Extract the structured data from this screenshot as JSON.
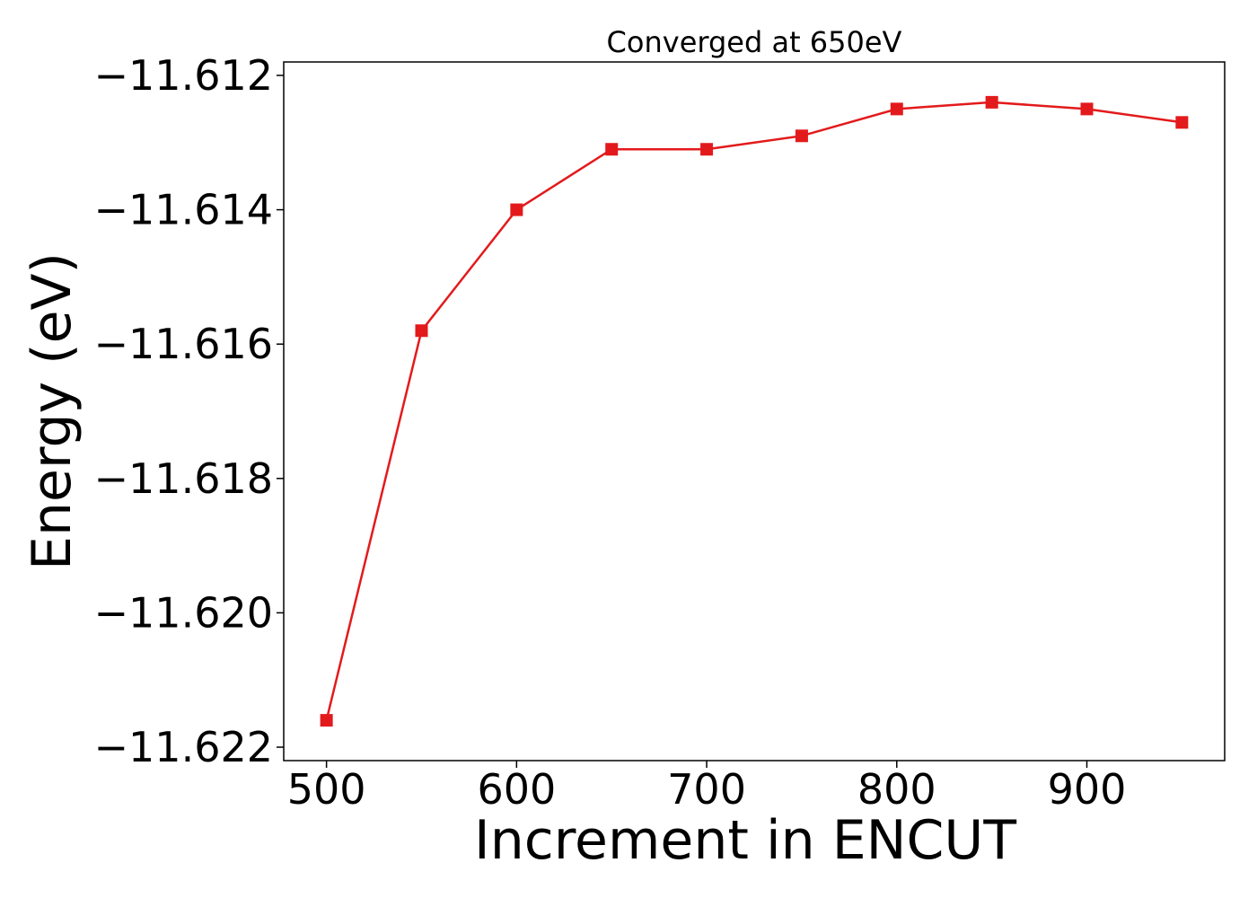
{
  "chart_data": {
    "type": "line",
    "title": "Converged at 650eV",
    "xlabel": "Increment in ENCUT",
    "ylabel": "Energy (eV)",
    "xlim": [
      477.5,
      972.5
    ],
    "ylim": [
      -11.6222,
      -11.6118
    ],
    "x_ticks": [
      500,
      600,
      700,
      800,
      900
    ],
    "x_tick_labels": [
      "500",
      "600",
      "700",
      "800",
      "900"
    ],
    "y_ticks": [
      -11.612,
      -11.614,
      -11.616,
      -11.618,
      -11.62,
      -11.622
    ],
    "y_tick_labels": [
      "−11.612",
      "−11.614",
      "−11.616",
      "−11.618",
      "−11.620",
      "−11.622"
    ],
    "grid": false,
    "series": [
      {
        "color": "#e31a1c",
        "marker": "square",
        "x": [
          500,
          550,
          600,
          650,
          700,
          750,
          800,
          850,
          900,
          950
        ],
        "y": [
          -11.6216,
          -11.6158,
          -11.614,
          -11.6131,
          -11.6131,
          -11.6129,
          -11.6125,
          -11.6124,
          -11.6125,
          -11.6127
        ]
      }
    ]
  }
}
